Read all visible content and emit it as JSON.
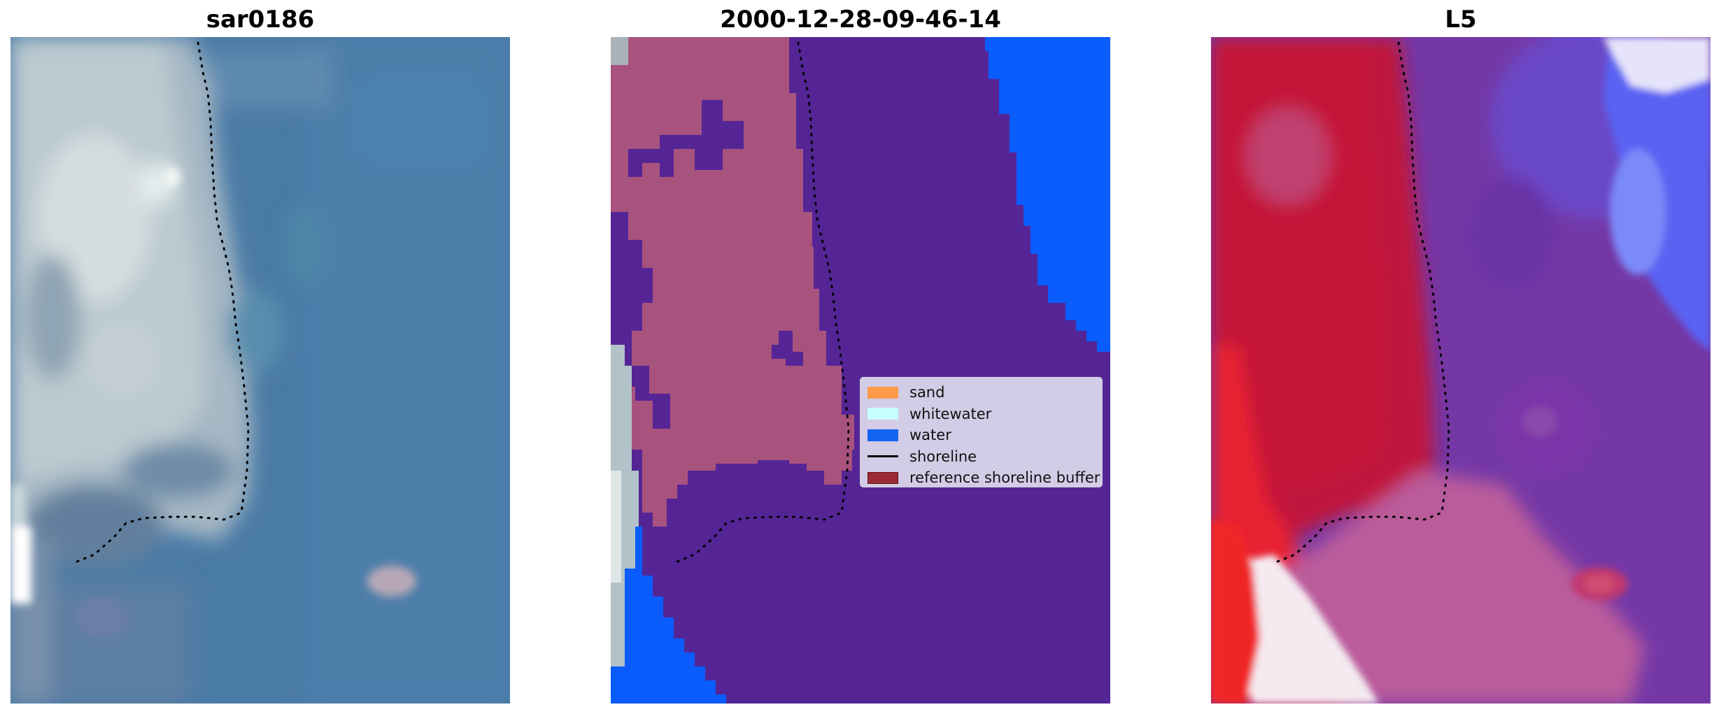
{
  "panels": [
    {
      "title": "sar0186",
      "type": "rgb-image"
    },
    {
      "title": "2000-12-28-09-46-14",
      "type": "classified-image"
    },
    {
      "title": "L5",
      "type": "mndwi-image"
    }
  ],
  "legend": {
    "items": [
      {
        "label": "sand",
        "color": "#ff9a4a",
        "kind": "patch"
      },
      {
        "label": "whitewater",
        "color": "#c8ffff",
        "kind": "patch"
      },
      {
        "label": "water",
        "color": "#1264f2",
        "kind": "patch"
      },
      {
        "label": "shoreline",
        "color": "#000000",
        "kind": "line"
      },
      {
        "label": "reference shoreline buffer",
        "color": "#9a2a36",
        "kind": "patch"
      }
    ]
  },
  "colors": {
    "sea_rgb": "#4a7aa6",
    "land_rgb": "#b4c4cc",
    "class_purple": "#552596",
    "class_pink": "#a8527e",
    "class_blue": "#0a5cfc",
    "mndwi_red": "#c0123a",
    "mndwi_purple": "#7438a6",
    "mndwi_blue": "#5a62f2"
  }
}
